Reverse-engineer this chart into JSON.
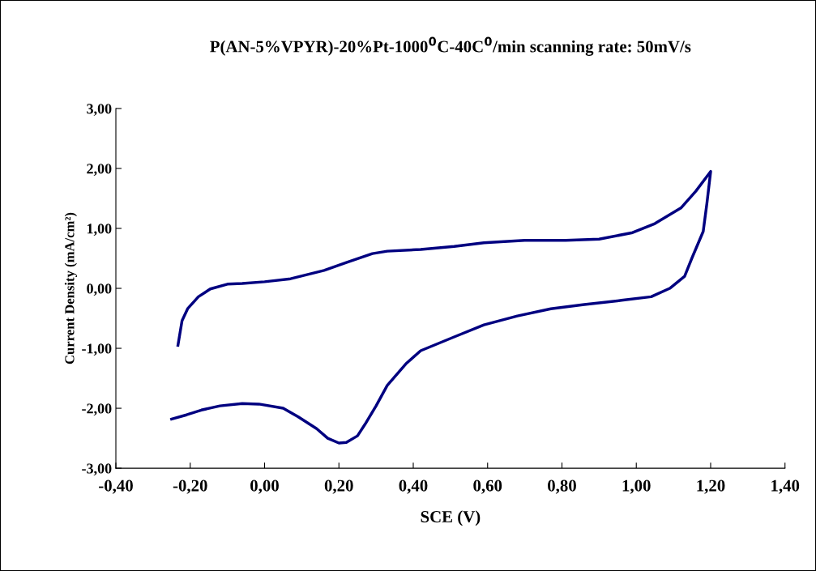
{
  "chart_data": {
    "type": "line",
    "title": "P(AN-5%VPYR)-20%Pt-1000$^{0}$C-40C$^{0}$/min scanning rate: 50mV/s",
    "xlabel": "SCE (V)",
    "ylabel": "Current Density (mA/cm²)",
    "xlim": [
      -0.4,
      1.4
    ],
    "ylim": [
      -3,
      3
    ],
    "xticks": [
      {
        "value": -0.4,
        "label": "-0,40"
      },
      {
        "value": -0.2,
        "label": "-0,20"
      },
      {
        "value": 0,
        "label": "0,00"
      },
      {
        "value": 0.2,
        "label": "0,20"
      },
      {
        "value": 0.4,
        "label": "0,40"
      },
      {
        "value": 0.6,
        "label": "0,60"
      },
      {
        "value": 0.8,
        "label": "0,80"
      },
      {
        "value": 1.0,
        "label": "1,00"
      },
      {
        "value": 1.2,
        "label": "1,20"
      },
      {
        "value": 1.4,
        "label": "1,40"
      }
    ],
    "yticks": [
      {
        "value": -3,
        "label": "-3,00"
      },
      {
        "value": -2,
        "label": "-2,00"
      },
      {
        "value": -1,
        "label": "-1,00"
      },
      {
        "value": 0,
        "label": "0,00"
      },
      {
        "value": 1,
        "label": "1,00"
      },
      {
        "value": 2,
        "label": "2,00"
      },
      {
        "value": 3,
        "label": "3,00"
      }
    ],
    "grid": false,
    "marker": "none",
    "line_style": "solid",
    "series": [
      {
        "color": "#000080",
        "x": [
          -0.233,
          -0.222,
          -0.207,
          -0.178,
          -0.146,
          -0.1,
          -0.06,
          0.0,
          0.07,
          0.16,
          0.22,
          0.29,
          0.33,
          0.42,
          0.51,
          0.59,
          0.7,
          0.81,
          0.9,
          0.99,
          1.05,
          1.12,
          1.16,
          1.2,
          1.19,
          1.18,
          1.15,
          1.13,
          1.09,
          1.04,
          0.96,
          0.86,
          0.77,
          0.68,
          0.59,
          0.51,
          0.42,
          0.38,
          0.33,
          0.3,
          0.27,
          0.25,
          0.22,
          0.2,
          0.17,
          0.14,
          0.09,
          0.05,
          -0.015,
          -0.06,
          -0.12,
          -0.17,
          -0.21,
          -0.25
        ],
        "values": [
          -0.95,
          -0.54,
          -0.34,
          -0.14,
          -0.01,
          0.07,
          0.08,
          0.11,
          0.16,
          0.3,
          0.43,
          0.58,
          0.62,
          0.65,
          0.7,
          0.76,
          0.8,
          0.8,
          0.82,
          0.93,
          1.08,
          1.34,
          1.62,
          1.95,
          1.42,
          0.95,
          0.51,
          0.2,
          0.0,
          -0.14,
          -0.2,
          -0.27,
          -0.34,
          -0.46,
          -0.61,
          -0.81,
          -1.04,
          -1.26,
          -1.62,
          -1.96,
          -2.27,
          -2.46,
          -2.57,
          -2.58,
          -2.5,
          -2.34,
          -2.14,
          -2.0,
          -1.93,
          -1.92,
          -1.96,
          -2.03,
          -2.11,
          -2.18
        ]
      }
    ]
  }
}
